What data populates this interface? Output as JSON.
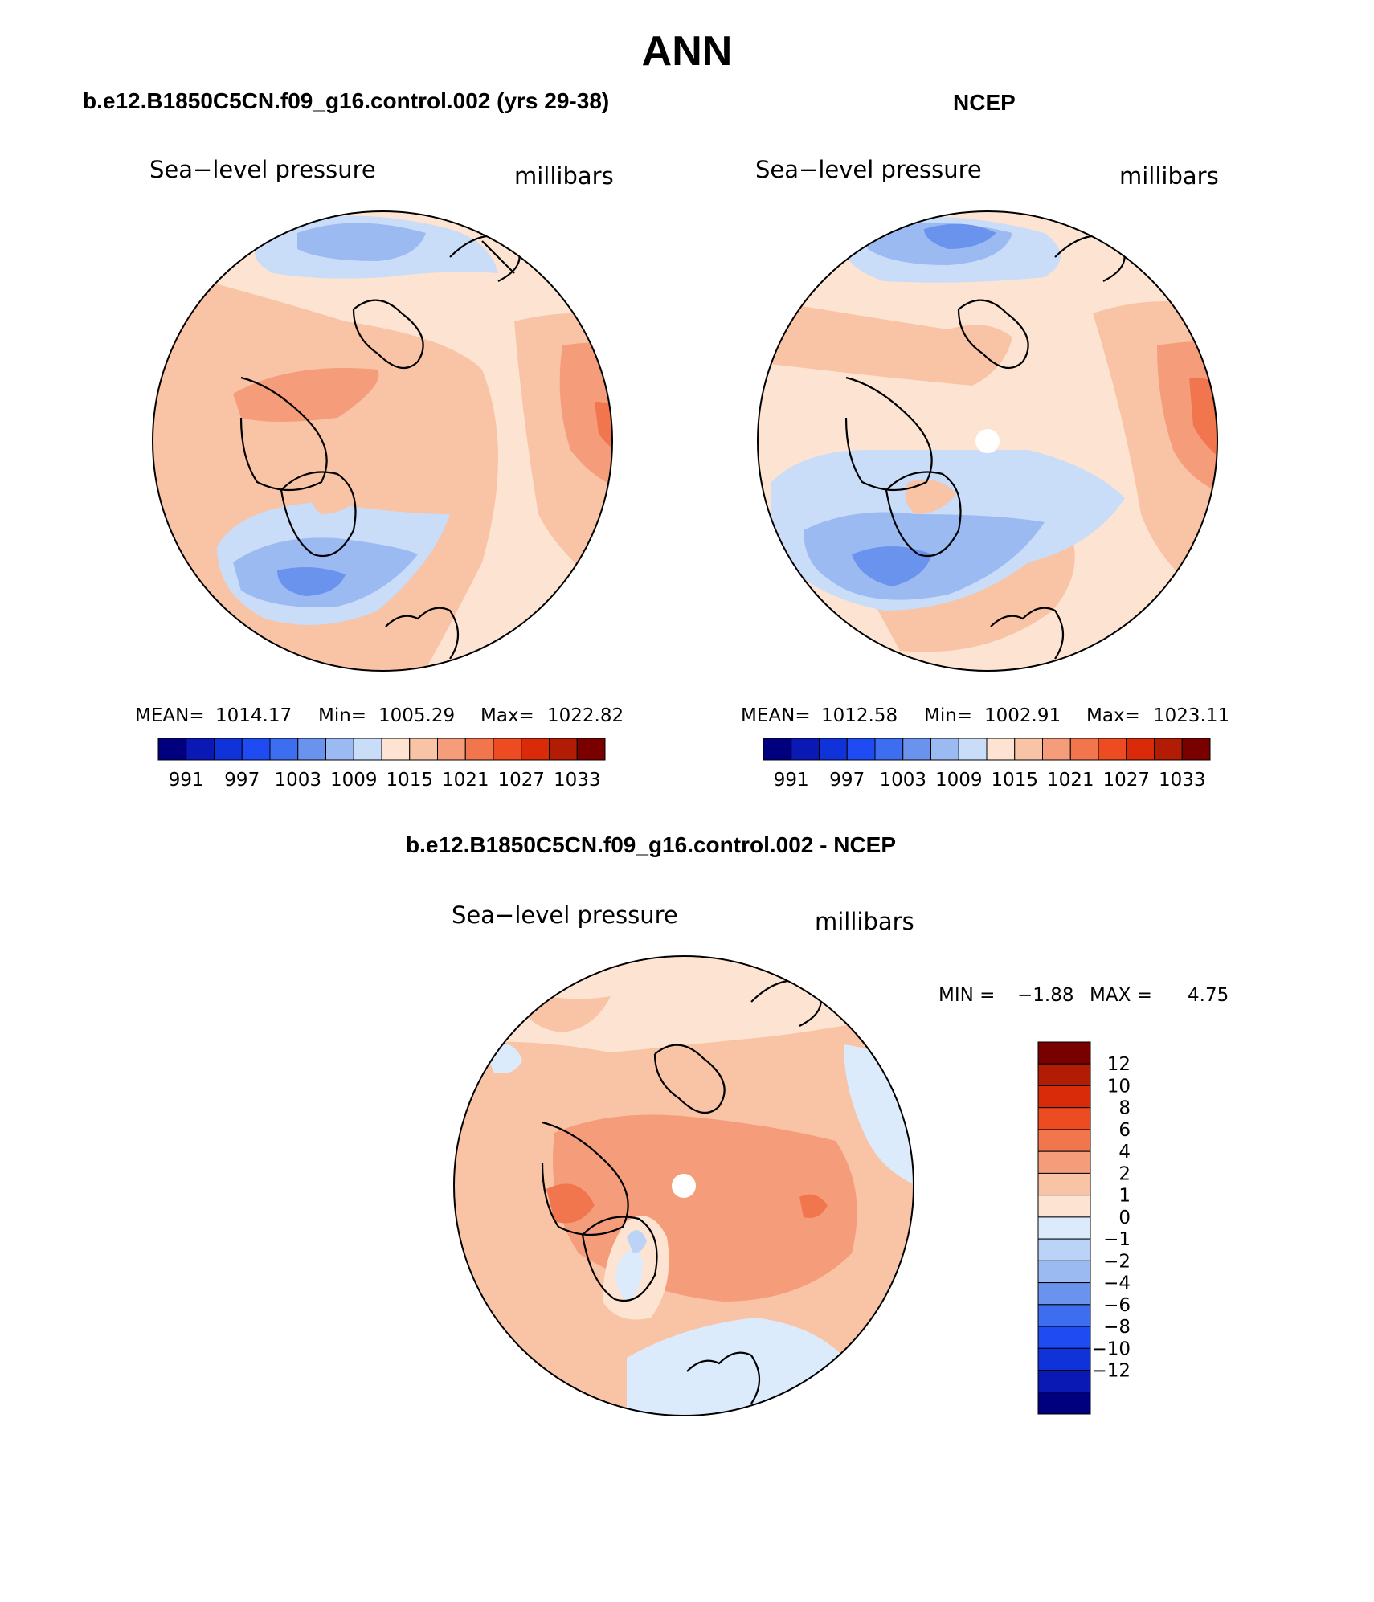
{
  "page_title": "ANN",
  "colors": {
    "slp_levels": [
      "#00007f",
      "#0a19b3",
      "#0f33d9",
      "#1f4cf2",
      "#3d6ef0",
      "#6a93ee",
      "#9bbaf2",
      "#c9dcf8",
      "#fde4d2",
      "#f9c3a6",
      "#f59d7a",
      "#f2764d",
      "#ed4b22",
      "#d92b0a",
      "#b21c05",
      "#7a0000"
    ],
    "diff_levels": [
      "#7a0000",
      "#b21c05",
      "#d92b0a",
      "#ed4b22",
      "#f2764d",
      "#f59d7a",
      "#f9c3a6",
      "#fde4d2",
      "#dcebfb",
      "#bcd3f8",
      "#9bbaf2",
      "#6a93ee",
      "#3d6ef0",
      "#1f4cf2",
      "#0f33d9",
      "#0a19b3",
      "#00007f"
    ],
    "land_outline": "#000000",
    "pole_mask": "#ffffff"
  },
  "icons": [
    "polar-stereographic-map"
  ],
  "chart_data": [
    {
      "type": "heatmap",
      "panel_title": "b.e12.B1850C5CN.f09_g16.control.002 (yrs 29-38)",
      "left_label": "Sea−level pressure",
      "right_label": "millibars",
      "stats": {
        "mean_label": "MEAN=",
        "mean": "1014.17",
        "min_label": "Min=",
        "min": "1005.29",
        "max_label": "Max=",
        "max": "1022.82"
      },
      "colorbar_ticks": [
        "991",
        "997",
        "1003",
        "1009",
        "1015",
        "1021",
        "1027",
        "1033"
      ]
    },
    {
      "type": "heatmap",
      "panel_title": "NCEP",
      "left_label": "Sea−level pressure",
      "right_label": "millibars",
      "stats": {
        "mean_label": "MEAN=",
        "mean": "1012.58",
        "min_label": "Min=",
        "min": "1002.91",
        "max_label": "Max=",
        "max": "1023.11"
      },
      "colorbar_ticks": [
        "991",
        "997",
        "1003",
        "1009",
        "1015",
        "1021",
        "1027",
        "1033"
      ]
    },
    {
      "type": "heatmap",
      "panel_title": "b.e12.B1850C5CN.f09_g16.control.002 - NCEP",
      "left_label": "Sea−level pressure",
      "right_label": "millibars",
      "stats": {
        "min_label": "MIN =",
        "min": "−1.88",
        "max_label": "MAX =",
        "max": "4.75"
      },
      "colorbar_ticks": [
        "12",
        "10",
        "8",
        "6",
        "4",
        "2",
        "1",
        "0",
        "−1",
        "−2",
        "−4",
        "−6",
        "−8",
        "−10",
        "−12"
      ]
    }
  ]
}
